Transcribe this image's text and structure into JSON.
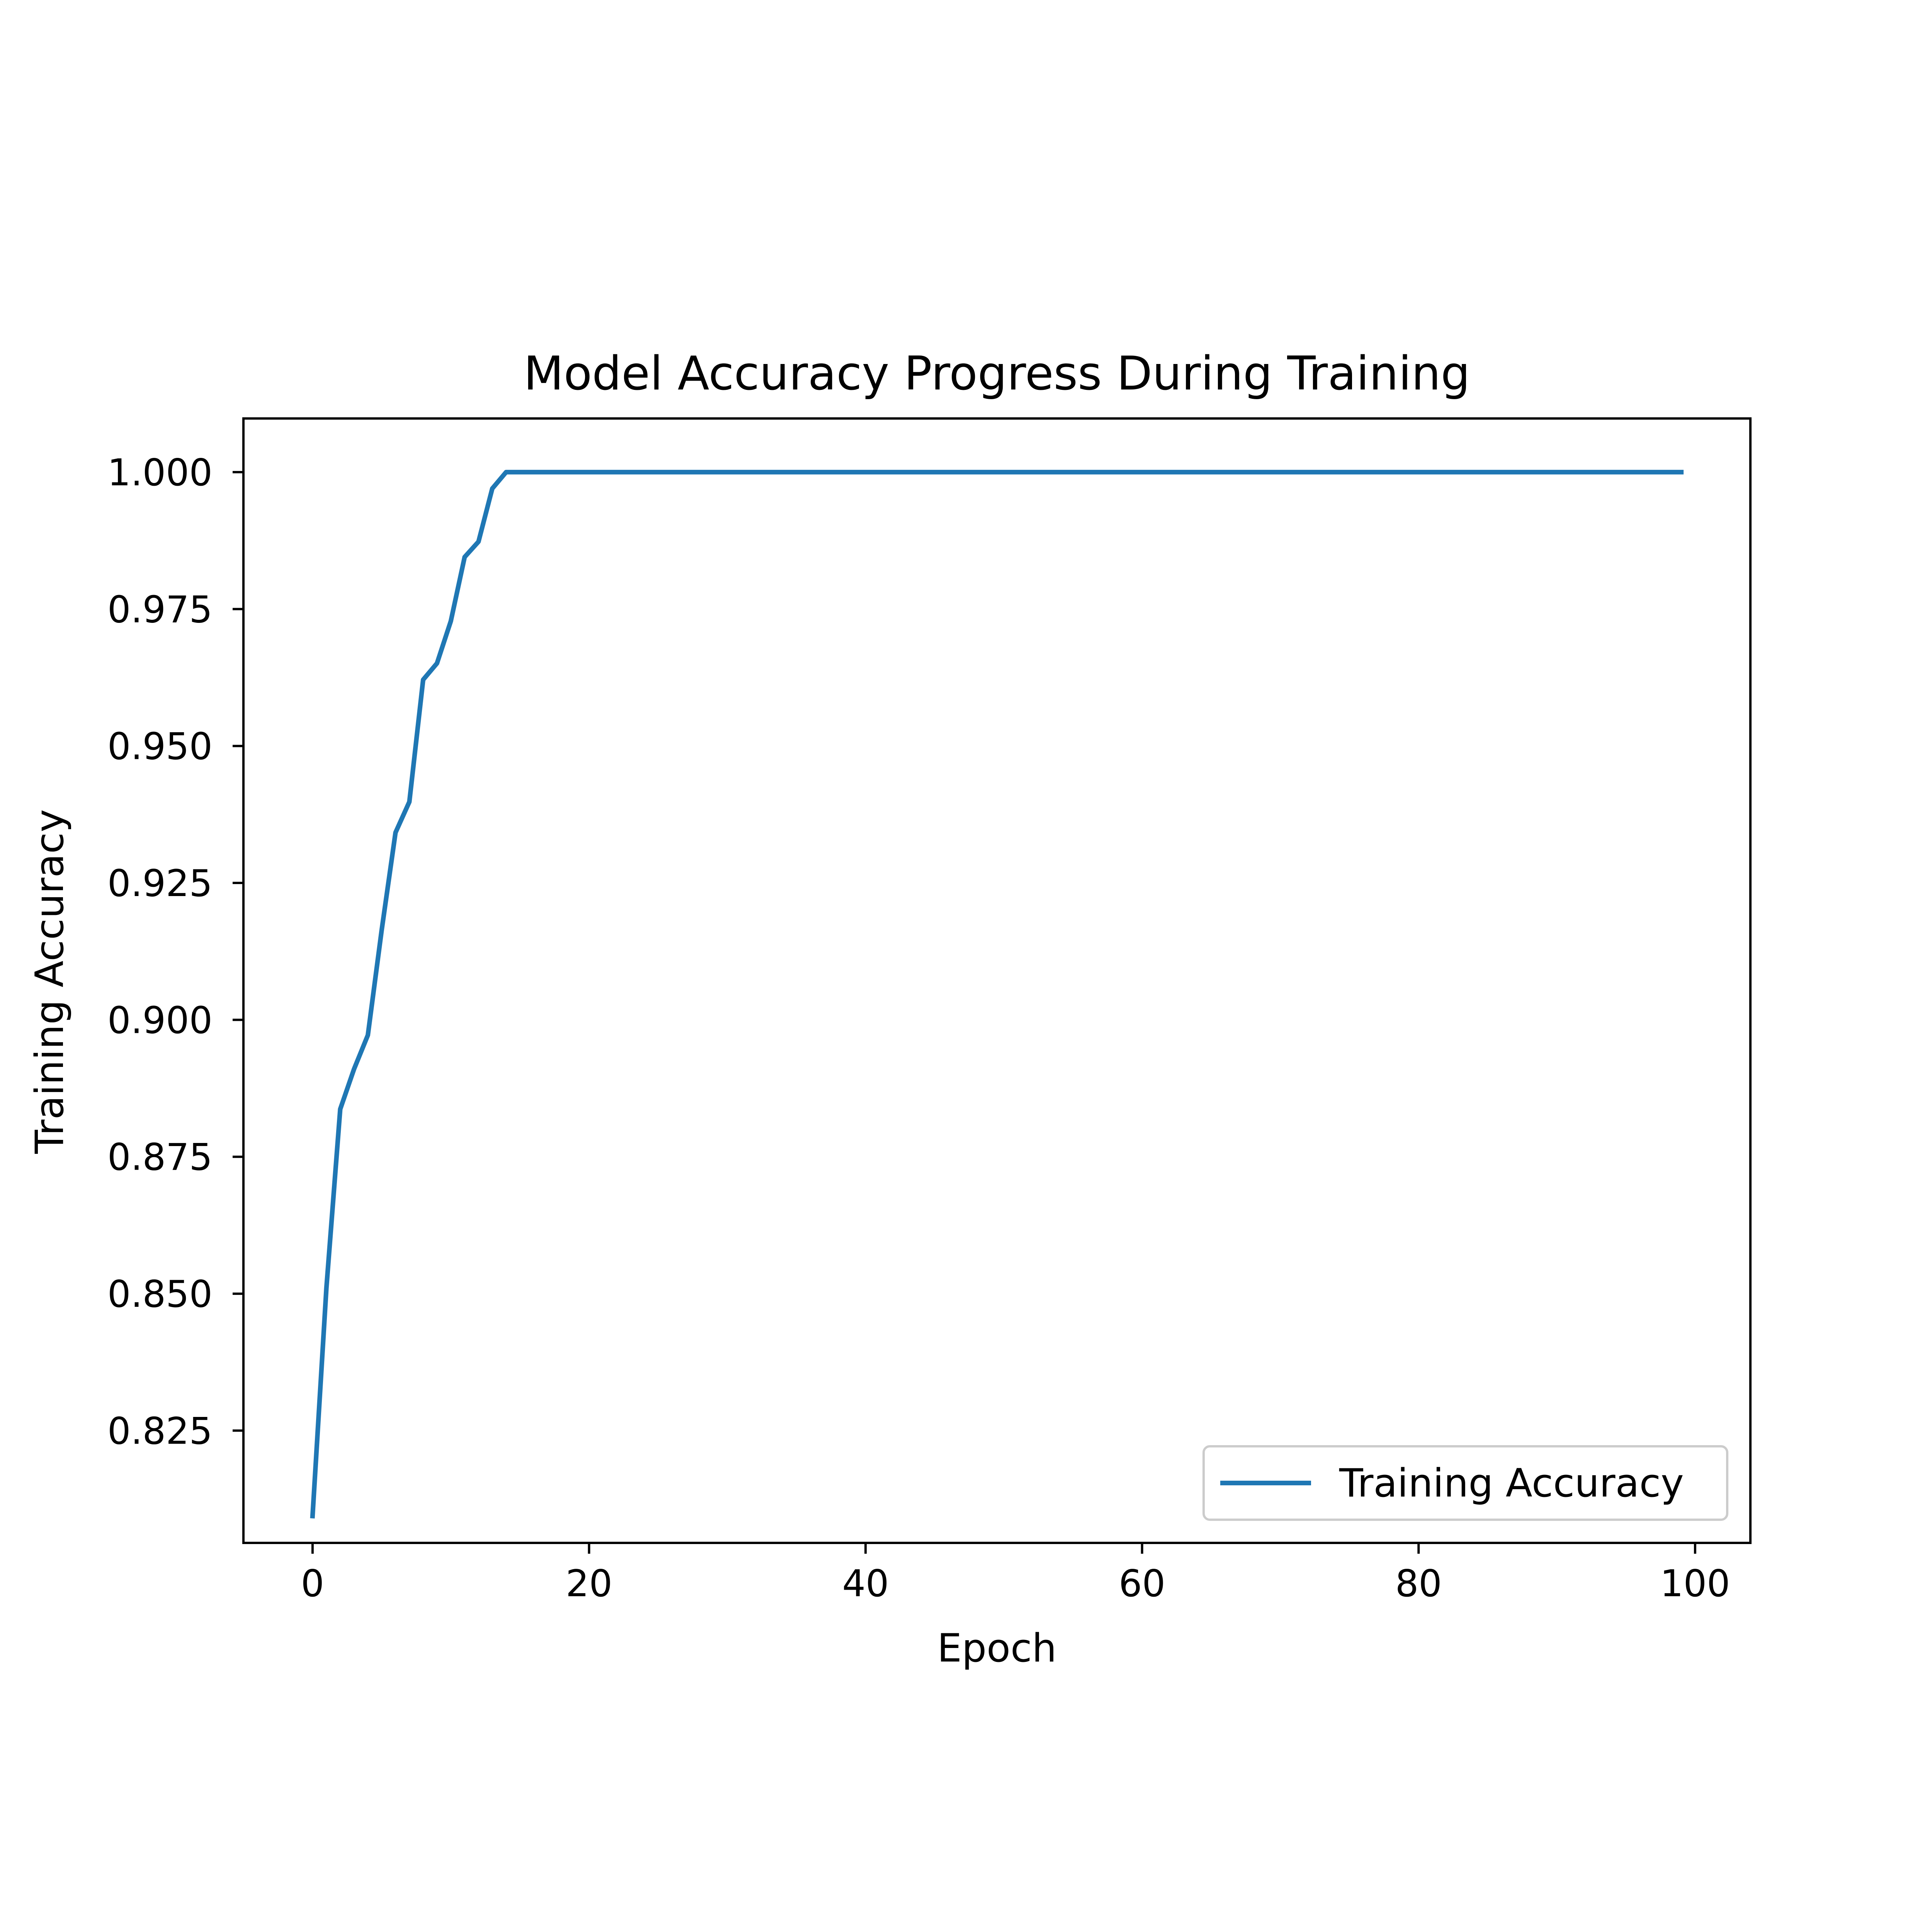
{
  "chart_data": {
    "type": "line",
    "title": "Model Accuracy Progress During Training",
    "xlabel": "Epoch",
    "ylabel": "Training Accuracy",
    "xlim": [
      -5,
      104
    ],
    "ylim": [
      0.8045,
      1.0098
    ],
    "xticks": [
      0,
      20,
      40,
      60,
      80,
      100
    ],
    "xtick_labels": [
      "0",
      "20",
      "40",
      "60",
      "80",
      "100"
    ],
    "yticks": [
      0.825,
      0.85,
      0.875,
      0.9,
      0.925,
      0.95,
      0.975,
      1.0
    ],
    "ytick_labels": [
      "0.825",
      "0.850",
      "0.875",
      "0.900",
      "0.925",
      "0.950",
      "0.975",
      "1.000"
    ],
    "grid": false,
    "legend": {
      "position": "lower-right",
      "entries": [
        "Training Accuracy"
      ]
    },
    "series": [
      {
        "name": "Training Accuracy",
        "color": "#1f77b4",
        "x": [
          0,
          1,
          2,
          3,
          4,
          5,
          6,
          7,
          8,
          9,
          10,
          11,
          12,
          13,
          14,
          99
        ],
        "y": [
          0.8094,
          0.851,
          0.8837,
          0.891,
          0.8972,
          0.9164,
          0.9342,
          0.9398,
          0.9621,
          0.9651,
          0.9728,
          0.9845,
          0.9873,
          0.997,
          1.0,
          1.0
        ]
      }
    ]
  }
}
